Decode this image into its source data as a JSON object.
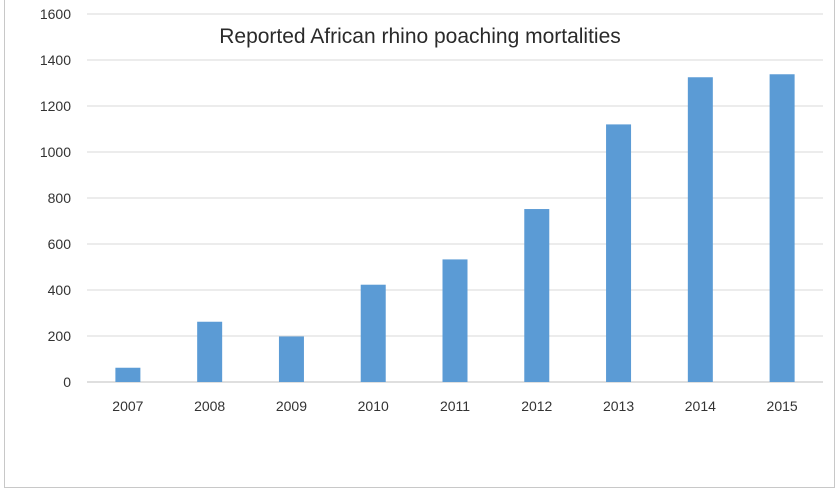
{
  "chart_data": {
    "type": "bar",
    "title": "Reported African rhino poaching mortalities",
    "categories": [
      "2007",
      "2008",
      "2009",
      "2010",
      "2011",
      "2012",
      "2013",
      "2014",
      "2015"
    ],
    "values": [
      62,
      262,
      198,
      423,
      533,
      752,
      1120,
      1325,
      1338
    ],
    "xlabel": "",
    "ylabel": "",
    "ylim": [
      0,
      1600
    ],
    "yticks": [
      0,
      200,
      400,
      600,
      800,
      1000,
      1200,
      1400,
      1600
    ],
    "grid": true,
    "legend": "none",
    "bar_color": "#5b9bd5"
  }
}
